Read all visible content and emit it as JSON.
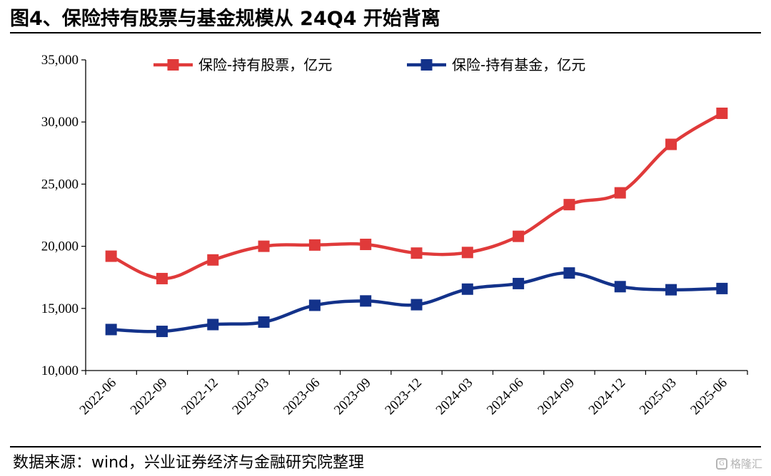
{
  "title": "图4、保险持有股票与基金规模从 24Q4 开始背离",
  "source": "数据来源：wind，兴业证券经济与金融研究院整理",
  "watermark": "格隆汇",
  "chart_data": {
    "type": "line",
    "categories": [
      "2022-06",
      "2022-09",
      "2022-12",
      "2023-03",
      "2023-06",
      "2023-09",
      "2023-12",
      "2024-03",
      "2024-06",
      "2024-09",
      "2024-12",
      "2025-03",
      "2025-06"
    ],
    "ylim": [
      10000,
      35000
    ],
    "yticks": [
      10000,
      15000,
      20000,
      25000,
      30000,
      35000
    ],
    "ytick_labels": [
      "10,000",
      "15,000",
      "20,000",
      "25,000",
      "30,000",
      "35,000"
    ],
    "legend_position": "top",
    "grid": false,
    "series": [
      {
        "name": "保险-持有股票，亿元",
        "color": "#e03a3a",
        "values": [
          19200,
          17400,
          18900,
          20000,
          20100,
          20150,
          19450,
          19500,
          20800,
          23350,
          24300,
          28200,
          30700
        ]
      },
      {
        "name": "保险-持有基金，亿元",
        "color": "#13328a",
        "values": [
          13300,
          13150,
          13700,
          13900,
          15250,
          15600,
          15300,
          16550,
          17000,
          17850,
          16750,
          16500,
          16600
        ]
      }
    ]
  }
}
